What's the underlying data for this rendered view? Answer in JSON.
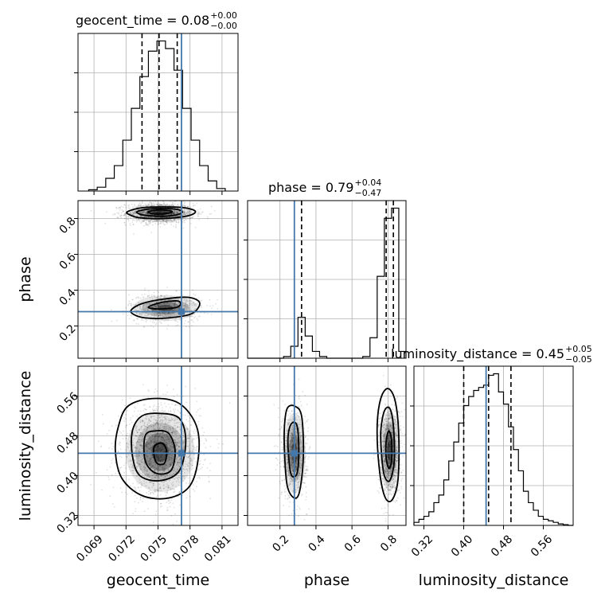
{
  "chart_data": {
    "type": "corner",
    "parameters": [
      "geocent_time",
      "phase",
      "luminosity_distance"
    ],
    "axis_labels": {
      "geocent_time": "geocent_time",
      "phase": "phase",
      "luminosity_distance": "luminosity_distance"
    },
    "ranges": {
      "geocent_time": [
        0.0675,
        0.0825
      ],
      "phase": [
        0.02,
        0.9
      ],
      "luminosity_distance": [
        0.3,
        0.62
      ]
    },
    "ticks": {
      "geocent_time": {
        "values": [
          0.069,
          0.072,
          0.075,
          0.078,
          0.081
        ],
        "labels": [
          "0.069",
          "0.072",
          "0.075",
          "0.078",
          "0.081"
        ]
      },
      "phase": {
        "values": [
          0.2,
          0.4,
          0.6,
          0.8
        ],
        "labels": [
          "0.2",
          "0.4",
          "0.6",
          "0.8"
        ]
      },
      "luminosity_distance": {
        "values": [
          0.32,
          0.4,
          0.48,
          0.56
        ],
        "labels": [
          "0.32",
          "0.40",
          "0.48",
          "0.56"
        ]
      }
    },
    "truths": {
      "geocent_time": 0.0772,
      "phase": 0.28,
      "luminosity_distance": 0.445
    },
    "truth_color": "#4477aa",
    "titles": [
      {
        "param": "geocent_time",
        "text": "geocent_time = 0.08",
        "plus": "+0.00",
        "minus": "−0.00"
      },
      {
        "param": "phase",
        "text": "phase = 0.79",
        "plus": "+0.04",
        "minus": "−0.47"
      },
      {
        "param": "luminosity_distance",
        "text": "luminosity_distance = 0.45",
        "plus": "+0.05",
        "minus": "−0.05"
      }
    ],
    "histograms": {
      "geocent_time": {
        "bin_edges": [
          0.0685,
          0.0693,
          0.0701,
          0.0709,
          0.0717,
          0.0725,
          0.0733,
          0.0741,
          0.0749,
          0.0757,
          0.0765,
          0.0773,
          0.0781,
          0.0789,
          0.0797,
          0.0805,
          0.0813
        ],
        "counts": [
          1,
          3,
          10,
          20,
          40,
          65,
          90,
          110,
          118,
          112,
          95,
          65,
          40,
          20,
          8,
          2
        ],
        "quantiles": [
          0.0735,
          0.0751,
          0.0768
        ]
      },
      "phase": {
        "bin_edges": [
          0.02,
          0.06,
          0.1,
          0.14,
          0.18,
          0.22,
          0.26,
          0.3,
          0.34,
          0.38,
          0.42,
          0.46,
          0.5,
          0.54,
          0.58,
          0.62,
          0.66,
          0.7,
          0.74,
          0.78,
          0.82,
          0.86,
          0.9
        ],
        "counts": [
          0,
          0,
          0,
          0,
          0,
          5,
          35,
          120,
          65,
          20,
          5,
          0,
          0,
          0,
          0,
          0,
          5,
          60,
          240,
          410,
          440,
          20
        ],
        "quantiles": [
          0.32,
          0.79,
          0.83
        ]
      },
      "luminosity_distance": {
        "bin_edges": [
          0.3,
          0.31,
          0.32,
          0.33,
          0.34,
          0.35,
          0.36,
          0.37,
          0.38,
          0.39,
          0.4,
          0.41,
          0.42,
          0.43,
          0.44,
          0.45,
          0.46,
          0.47,
          0.48,
          0.49,
          0.5,
          0.51,
          0.52,
          0.53,
          0.54,
          0.55,
          0.56,
          0.57,
          0.58,
          0.59,
          0.6,
          0.61,
          0.62
        ],
        "counts": [
          4,
          8,
          12,
          18,
          30,
          40,
          60,
          85,
          110,
          135,
          158,
          170,
          178,
          182,
          185,
          198,
          200,
          176,
          160,
          130,
          100,
          72,
          45,
          30,
          20,
          12,
          8,
          6,
          4,
          2,
          1,
          0
        ],
        "quantiles": [
          0.4,
          0.45,
          0.495
        ]
      }
    },
    "samples_2d": [
      {
        "x": "geocent_time",
        "y": "phase",
        "modes": [
          {
            "cx": 0.0752,
            "cy": 0.83,
            "sx": 0.0016,
            "sy": 0.028,
            "n": 1500
          },
          {
            "cx": 0.0757,
            "cy": 0.3,
            "sx": 0.0017,
            "sy": 0.04,
            "n": 700
          }
        ],
        "contours": [
          [
            [
              0.0722,
              0.84
            ],
            [
              0.0735,
              0.86
            ],
            [
              0.0755,
              0.865
            ],
            [
              0.0775,
              0.86
            ],
            [
              0.0785,
              0.84
            ],
            [
              0.0778,
              0.815
            ],
            [
              0.0755,
              0.8
            ],
            [
              0.0732,
              0.805
            ],
            [
              0.0722,
              0.825
            ]
          ],
          [
            [
              0.073,
              0.835
            ],
            [
              0.074,
              0.852
            ],
            [
              0.0756,
              0.856
            ],
            [
              0.077,
              0.848
            ],
            [
              0.0772,
              0.83
            ],
            [
              0.076,
              0.814
            ],
            [
              0.074,
              0.816
            ]
          ],
          [
            [
              0.0741,
              0.838
            ],
            [
              0.0752,
              0.848
            ],
            [
              0.0763,
              0.84
            ],
            [
              0.0758,
              0.828
            ],
            [
              0.0746,
              0.826
            ]
          ],
          [
            [
              0.0725,
              0.29
            ],
            [
              0.0735,
              0.325
            ],
            [
              0.0755,
              0.35
            ],
            [
              0.0778,
              0.36
            ],
            [
              0.0789,
              0.33
            ],
            [
              0.0782,
              0.27
            ],
            [
              0.076,
              0.245
            ],
            [
              0.0738,
              0.245
            ],
            [
              0.0727,
              0.265
            ]
          ],
          [
            [
              0.0741,
              0.305
            ],
            [
              0.0752,
              0.33
            ],
            [
              0.0768,
              0.34
            ],
            [
              0.0771,
              0.32
            ],
            [
              0.0766,
              0.302
            ],
            [
              0.075,
              0.295
            ]
          ]
        ]
      },
      {
        "x": "geocent_time",
        "y": "luminosity_distance",
        "modes": [
          {
            "cx": 0.0752,
            "cy": 0.448,
            "sx": 0.0018,
            "sy": 0.045,
            "n": 2000
          }
        ],
        "contours": [
          [
            [
              0.0713,
              0.5
            ],
            [
              0.0722,
              0.54
            ],
            [
              0.0745,
              0.555
            ],
            [
              0.077,
              0.545
            ],
            [
              0.0786,
              0.5
            ],
            [
              0.0788,
              0.44
            ],
            [
              0.078,
              0.38
            ],
            [
              0.076,
              0.355
            ],
            [
              0.0735,
              0.36
            ],
            [
              0.0716,
              0.395
            ],
            [
              0.071,
              0.45
            ]
          ],
          [
            [
              0.0726,
              0.49
            ],
            [
              0.0735,
              0.52
            ],
            [
              0.0752,
              0.525
            ],
            [
              0.077,
              0.515
            ],
            [
              0.0776,
              0.47
            ],
            [
              0.077,
              0.41
            ],
            [
              0.0752,
              0.39
            ],
            [
              0.0733,
              0.4
            ],
            [
              0.0726,
              0.44
            ]
          ],
          [
            [
              0.0738,
              0.48
            ],
            [
              0.0748,
              0.49
            ],
            [
              0.076,
              0.485
            ],
            [
              0.0766,
              0.45
            ],
            [
              0.0762,
              0.41
            ],
            [
              0.0748,
              0.405
            ],
            [
              0.0738,
              0.43
            ]
          ],
          [
            [
              0.0747,
              0.46
            ],
            [
              0.0754,
              0.465
            ],
            [
              0.0758,
              0.45
            ],
            [
              0.0756,
              0.425
            ],
            [
              0.0749,
              0.425
            ],
            [
              0.0746,
              0.445
            ]
          ]
        ]
      },
      {
        "x": "phase",
        "y": "luminosity_distance",
        "modes": [
          {
            "cx": 0.28,
            "cy": 0.445,
            "sx": 0.035,
            "sy": 0.045,
            "n": 900
          },
          {
            "cx": 0.81,
            "cy": 0.45,
            "sx": 0.03,
            "sy": 0.045,
            "n": 1300
          }
        ],
        "contours": [
          [
            [
              0.225,
              0.5
            ],
            [
              0.24,
              0.535
            ],
            [
              0.28,
              0.54
            ],
            [
              0.32,
              0.52
            ],
            [
              0.33,
              0.44
            ],
            [
              0.31,
              0.37
            ],
            [
              0.28,
              0.355
            ],
            [
              0.24,
              0.38
            ],
            [
              0.225,
              0.45
            ]
          ],
          [
            [
              0.245,
              0.48
            ],
            [
              0.265,
              0.505
            ],
            [
              0.295,
              0.5
            ],
            [
              0.305,
              0.45
            ],
            [
              0.295,
              0.405
            ],
            [
              0.265,
              0.4
            ],
            [
              0.25,
              0.43
            ]
          ],
          [
            [
              0.74,
              0.5
            ],
            [
              0.76,
              0.555
            ],
            [
              0.8,
              0.575
            ],
            [
              0.84,
              0.55
            ],
            [
              0.86,
              0.48
            ],
            [
              0.855,
              0.39
            ],
            [
              0.82,
              0.35
            ],
            [
              0.78,
              0.36
            ],
            [
              0.75,
              0.42
            ]
          ],
          [
            [
              0.76,
              0.49
            ],
            [
              0.78,
              0.53
            ],
            [
              0.81,
              0.535
            ],
            [
              0.83,
              0.5
            ],
            [
              0.835,
              0.43
            ],
            [
              0.81,
              0.39
            ],
            [
              0.78,
              0.4
            ],
            [
              0.765,
              0.44
            ]
          ],
          [
            [
              0.79,
              0.47
            ],
            [
              0.805,
              0.49
            ],
            [
              0.82,
              0.47
            ],
            [
              0.82,
              0.43
            ],
            [
              0.805,
              0.415
            ],
            [
              0.79,
              0.435
            ]
          ]
        ]
      }
    ],
    "grid": true,
    "panel_layout": "lower-triangle"
  }
}
